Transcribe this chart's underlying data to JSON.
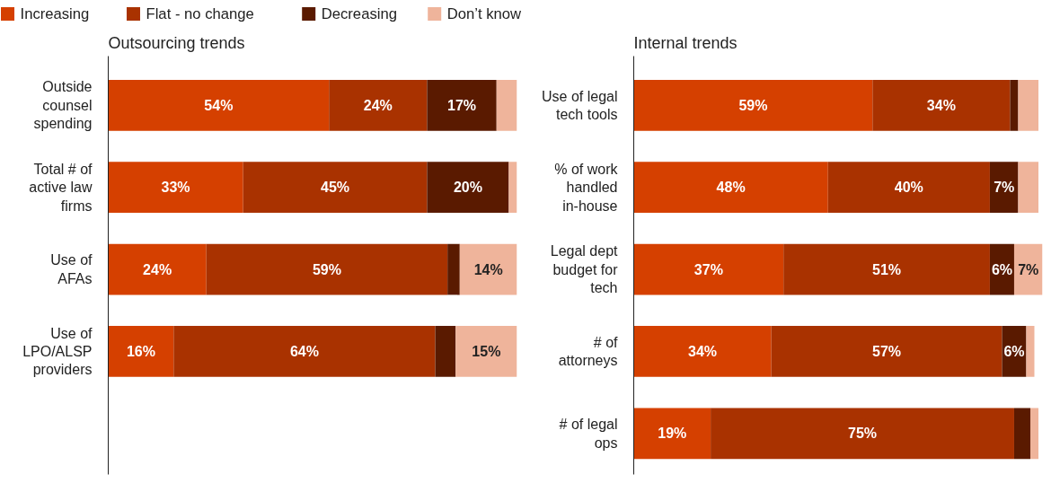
{
  "chart_data": [
    {
      "type": "bar",
      "title": "Outsourcing trends",
      "orientation": "horizontal",
      "stacked": true,
      "legend": "top",
      "tick_labels": "y",
      "grid": false,
      "categories": [
        "Outside counsel spending",
        "Total # of active law firms",
        "Use of AFAs",
        "Use of LPO/ALSP providers"
      ],
      "series": [
        {
          "name": "Increasing",
          "color": "#d54000",
          "values": [
            54,
            33,
            24,
            16
          ],
          "value_labels": [
            "54%",
            "33%",
            "24%",
            "16%"
          ]
        },
        {
          "name": "Flat - no change",
          "color": "#a93200",
          "values": [
            24,
            45,
            59,
            64
          ],
          "value_labels": [
            "24%",
            "45%",
            "59%",
            "64%"
          ]
        },
        {
          "name": "Decreasing",
          "color": "#5a1a00",
          "values": [
            17,
            20,
            3,
            5
          ],
          "value_labels": [
            "17%",
            "20%",
            null,
            null
          ]
        },
        {
          "name": "Don’t know",
          "color": "#efb49b",
          "values": [
            5,
            2,
            14,
            15
          ],
          "value_labels": [
            null,
            null,
            "14%",
            "15%"
          ]
        }
      ]
    },
    {
      "type": "bar",
      "title": "Internal trends",
      "orientation": "horizontal",
      "stacked": true,
      "tick_labels": "y",
      "grid": false,
      "categories": [
        "Use of legal tech tools",
        "% of work handled in-house",
        "Legal dept budget for tech",
        "# of attorneys",
        "# of legal ops"
      ],
      "series": [
        {
          "color": "#d54000",
          "values": [
            59,
            48,
            37,
            34,
            19
          ],
          "value_labels": [
            "59%",
            "48%",
            "37%",
            "34%",
            "19%"
          ]
        },
        {
          "color": "#a93200",
          "values": [
            34,
            40,
            51,
            57,
            75
          ],
          "value_labels": [
            "34%",
            "40%",
            "51%",
            "57%",
            "75%"
          ]
        },
        {
          "color": "#5a1a00",
          "values": [
            2,
            7,
            6,
            6,
            4
          ],
          "value_labels": [
            null,
            "7%",
            "6%",
            "6%",
            null
          ]
        },
        {
          "color": "#efb49b",
          "values": [
            5,
            5,
            7,
            2,
            2
          ],
          "value_labels": [
            null,
            null,
            "7%",
            null,
            null
          ]
        }
      ]
    }
  ]
}
